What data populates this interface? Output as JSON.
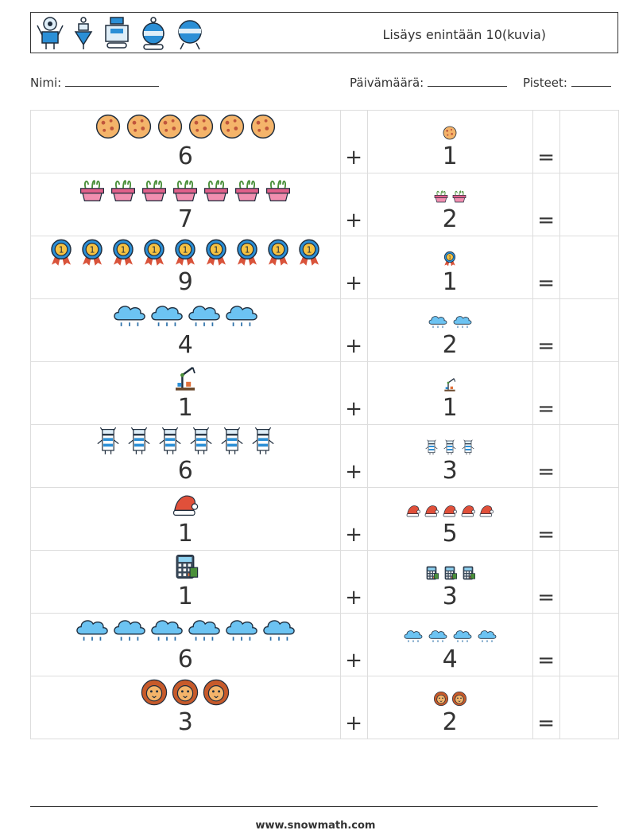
{
  "header": {
    "title": "Lisäys enintään 10(kuvia)",
    "icons": [
      "robot-icon",
      "robot-icon",
      "robot-icon",
      "robot-icon",
      "robot-icon"
    ]
  },
  "info": {
    "name_label": "Nimi:",
    "date_label": "Päivämäärä:",
    "score_label": "Pisteet:"
  },
  "operators": {
    "plus": "+",
    "equals": "="
  },
  "rows": [
    {
      "a": "6",
      "a_icon": "cookie-icon",
      "b": "1",
      "b_icon": "cookie-icon"
    },
    {
      "a": "7",
      "a_icon": "plant-pot-icon",
      "b": "2",
      "b_icon": "plant-pot-icon"
    },
    {
      "a": "9",
      "a_icon": "medal-icon",
      "b": "1",
      "b_icon": "medal-icon"
    },
    {
      "a": "4",
      "a_icon": "rain-cloud-icon",
      "b": "2",
      "b_icon": "rain-cloud-icon"
    },
    {
      "a": "1",
      "a_icon": "robot-arm-icon",
      "b": "1",
      "b_icon": "robot-arm-icon"
    },
    {
      "a": "6",
      "a_icon": "robot-icon",
      "b": "3",
      "b_icon": "robot-icon"
    },
    {
      "a": "1",
      "a_icon": "santa-hat-icon",
      "b": "5",
      "b_icon": "santa-hat-icon"
    },
    {
      "a": "1",
      "a_icon": "calculator-icon",
      "b": "3",
      "b_icon": "calculator-icon"
    },
    {
      "a": "6",
      "a_icon": "rain-cloud-icon",
      "b": "4",
      "b_icon": "rain-cloud-icon"
    },
    {
      "a": "3",
      "a_icon": "lion-icon",
      "b": "2",
      "b_icon": "lion-icon"
    }
  ],
  "footer": {
    "url": "www.snowmath.com"
  }
}
